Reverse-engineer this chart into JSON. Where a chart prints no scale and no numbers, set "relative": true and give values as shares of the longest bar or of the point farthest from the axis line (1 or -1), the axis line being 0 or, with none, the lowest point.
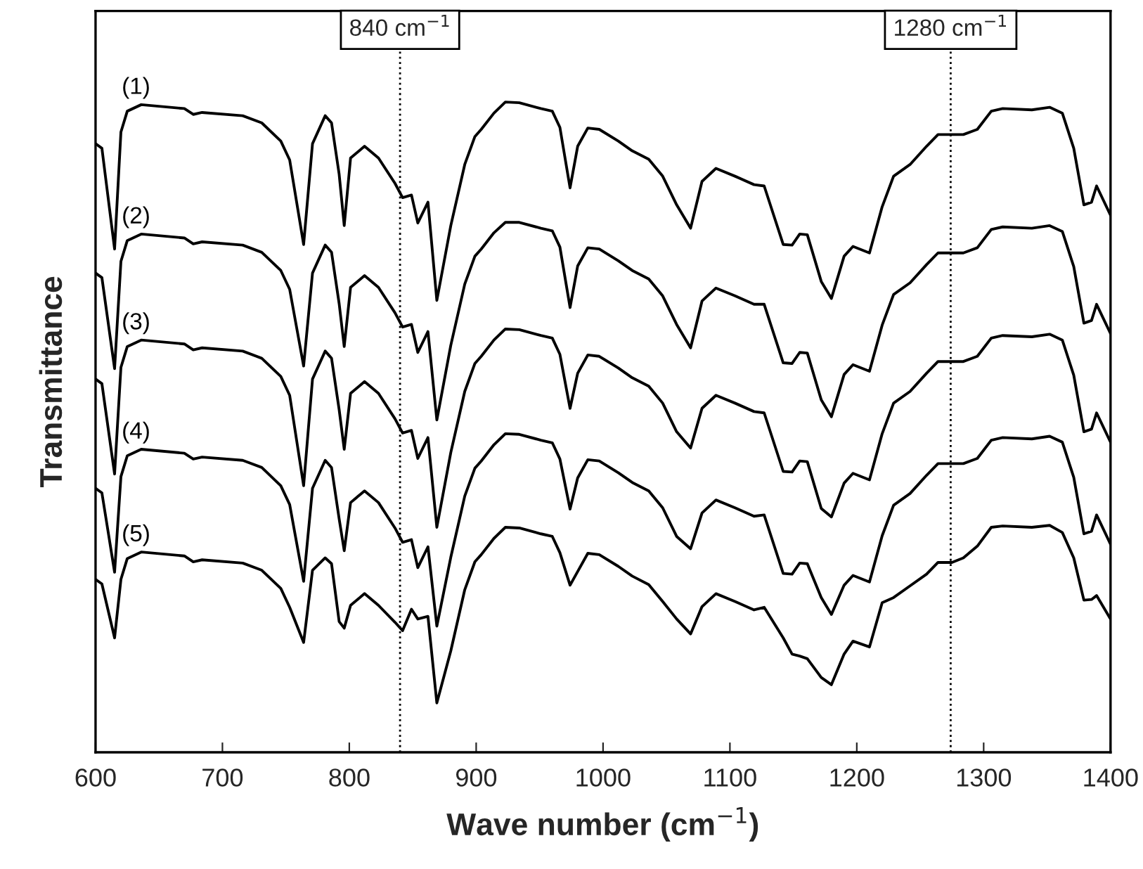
{
  "chart_data": {
    "type": "line",
    "relative": true,
    "xlabel": "Wave number (cm$^{−1}$)",
    "ylabel": "Transmittance",
    "xlim": [
      600,
      1400
    ],
    "xticks": [
      600,
      700,
      800,
      900,
      1000,
      1100,
      1200,
      1300,
      1400
    ],
    "grid": false,
    "legend": false,
    "marker": "none",
    "line_style": "solid",
    "x": [
      600,
      605,
      615,
      620,
      625,
      636,
      670,
      677,
      684,
      716,
      731,
      746,
      753,
      764,
      771,
      781,
      786,
      792,
      796,
      801,
      812,
      823,
      836,
      842,
      849,
      854,
      862,
      869,
      880,
      891,
      899,
      904,
      914,
      923,
      934,
      951,
      960,
      966,
      974,
      980,
      988,
      997,
      1012,
      1023,
      1036,
      1047,
      1058,
      1069,
      1078,
      1089,
      1104,
      1119,
      1127,
      1142,
      1149,
      1155,
      1161,
      1172,
      1180,
      1190,
      1197,
      1210,
      1220,
      1229,
      1242,
      1255,
      1264,
      1275,
      1284,
      1295,
      1306,
      1315,
      1338,
      1352,
      1362,
      1371,
      1379,
      1385,
      1389,
      1400
    ],
    "series": [
      {
        "name": "(1)",
        "color": "#000000",
        "values": [
          0.936,
          0.929,
          0.774,
          0.954,
          0.986,
          0.996,
          0.99,
          0.981,
          0.984,
          0.979,
          0.968,
          0.94,
          0.911,
          0.781,
          0.936,
          0.979,
          0.968,
          0.889,
          0.81,
          0.914,
          0.932,
          0.914,
          0.875,
          0.853,
          0.857,
          0.814,
          0.846,
          0.695,
          0.81,
          0.904,
          0.947,
          0.958,
          0.983,
          1.0,
          0.999,
          0.99,
          0.986,
          0.961,
          0.868,
          0.932,
          0.96,
          0.958,
          0.94,
          0.925,
          0.912,
          0.886,
          0.842,
          0.806,
          0.878,
          0.898,
          0.886,
          0.873,
          0.871,
          0.781,
          0.78,
          0.797,
          0.796,
          0.724,
          0.698,
          0.763,
          0.778,
          0.768,
          0.839,
          0.886,
          0.904,
          0.932,
          0.95,
          0.95,
          0.95,
          0.958,
          0.986,
          0.99,
          0.988,
          0.992,
          0.983,
          0.929,
          0.842,
          0.846,
          0.871,
          0.826
        ]
      },
      {
        "name": "(2)",
        "color": "#000000",
        "values": [
          0.737,
          0.73,
          0.59,
          0.755,
          0.787,
          0.797,
          0.791,
          0.782,
          0.785,
          0.78,
          0.769,
          0.741,
          0.712,
          0.594,
          0.737,
          0.78,
          0.769,
          0.69,
          0.624,
          0.715,
          0.733,
          0.715,
          0.676,
          0.654,
          0.658,
          0.615,
          0.647,
          0.511,
          0.626,
          0.72,
          0.763,
          0.774,
          0.799,
          0.815,
          0.815,
          0.806,
          0.802,
          0.777,
          0.684,
          0.748,
          0.776,
          0.774,
          0.756,
          0.741,
          0.728,
          0.702,
          0.658,
          0.622,
          0.694,
          0.714,
          0.702,
          0.689,
          0.689,
          0.599,
          0.598,
          0.615,
          0.614,
          0.542,
          0.516,
          0.581,
          0.596,
          0.586,
          0.657,
          0.704,
          0.722,
          0.75,
          0.768,
          0.768,
          0.768,
          0.776,
          0.804,
          0.808,
          0.806,
          0.81,
          0.801,
          0.747,
          0.66,
          0.664,
          0.689,
          0.644
        ]
      },
      {
        "name": "(3)",
        "color": "#000000",
        "values": [
          0.574,
          0.567,
          0.428,
          0.592,
          0.624,
          0.634,
          0.628,
          0.619,
          0.622,
          0.617,
          0.606,
          0.578,
          0.549,
          0.41,
          0.574,
          0.617,
          0.606,
          0.527,
          0.466,
          0.552,
          0.57,
          0.552,
          0.513,
          0.491,
          0.495,
          0.452,
          0.484,
          0.346,
          0.461,
          0.555,
          0.598,
          0.609,
          0.634,
          0.651,
          0.65,
          0.641,
          0.637,
          0.612,
          0.529,
          0.583,
          0.611,
          0.609,
          0.591,
          0.576,
          0.563,
          0.537,
          0.493,
          0.468,
          0.529,
          0.549,
          0.537,
          0.524,
          0.522,
          0.432,
          0.431,
          0.448,
          0.447,
          0.375,
          0.362,
          0.414,
          0.429,
          0.419,
          0.49,
          0.537,
          0.555,
          0.583,
          0.601,
          0.601,
          0.601,
          0.609,
          0.637,
          0.641,
          0.639,
          0.643,
          0.634,
          0.58,
          0.493,
          0.497,
          0.522,
          0.477
        ]
      },
      {
        "name": "(4)",
        "color": "#000000",
        "values": [
          0.406,
          0.399,
          0.277,
          0.424,
          0.456,
          0.466,
          0.46,
          0.451,
          0.454,
          0.449,
          0.438,
          0.41,
          0.381,
          0.263,
          0.406,
          0.449,
          0.438,
          0.359,
          0.31,
          0.384,
          0.402,
          0.384,
          0.345,
          0.323,
          0.327,
          0.284,
          0.316,
          0.194,
          0.3,
          0.394,
          0.437,
          0.448,
          0.473,
          0.49,
          0.489,
          0.48,
          0.476,
          0.451,
          0.374,
          0.422,
          0.45,
          0.448,
          0.43,
          0.415,
          0.402,
          0.376,
          0.332,
          0.313,
          0.368,
          0.388,
          0.376,
          0.363,
          0.365,
          0.275,
          0.274,
          0.291,
          0.29,
          0.238,
          0.212,
          0.257,
          0.272,
          0.262,
          0.333,
          0.38,
          0.398,
          0.426,
          0.444,
          0.444,
          0.444,
          0.452,
          0.48,
          0.484,
          0.482,
          0.486,
          0.477,
          0.423,
          0.336,
          0.34,
          0.365,
          0.32
        ]
      },
      {
        "name": "(5)",
        "color": "#000000",
        "values": [
          0.266,
          0.259,
          0.176,
          0.266,
          0.298,
          0.308,
          0.302,
          0.293,
          0.296,
          0.291,
          0.28,
          0.252,
          0.223,
          0.169,
          0.28,
          0.299,
          0.29,
          0.201,
          0.191,
          0.226,
          0.244,
          0.226,
          0.2,
          0.187,
          0.22,
          0.205,
          0.209,
          0.076,
          0.156,
          0.25,
          0.293,
          0.304,
          0.329,
          0.346,
          0.345,
          0.336,
          0.332,
          0.307,
          0.257,
          0.278,
          0.306,
          0.304,
          0.286,
          0.271,
          0.258,
          0.232,
          0.205,
          0.182,
          0.224,
          0.244,
          0.232,
          0.219,
          0.223,
          0.176,
          0.151,
          0.148,
          0.144,
          0.115,
          0.104,
          0.151,
          0.171,
          0.162,
          0.23,
          0.238,
          0.256,
          0.274,
          0.292,
          0.292,
          0.299,
          0.317,
          0.346,
          0.348,
          0.346,
          0.349,
          0.338,
          0.299,
          0.234,
          0.235,
          0.241,
          0.205
        ]
      }
    ],
    "ref_lines": [
      {
        "axis": "x",
        "value": 840,
        "label": "840 cm$^{−1}$",
        "line_style": "dotted",
        "color": "#000000"
      },
      {
        "axis": "x",
        "value": 1274,
        "label": "1280 cm$^{−1}$",
        "line_style": "dotted",
        "color": "#000000"
      }
    ]
  }
}
